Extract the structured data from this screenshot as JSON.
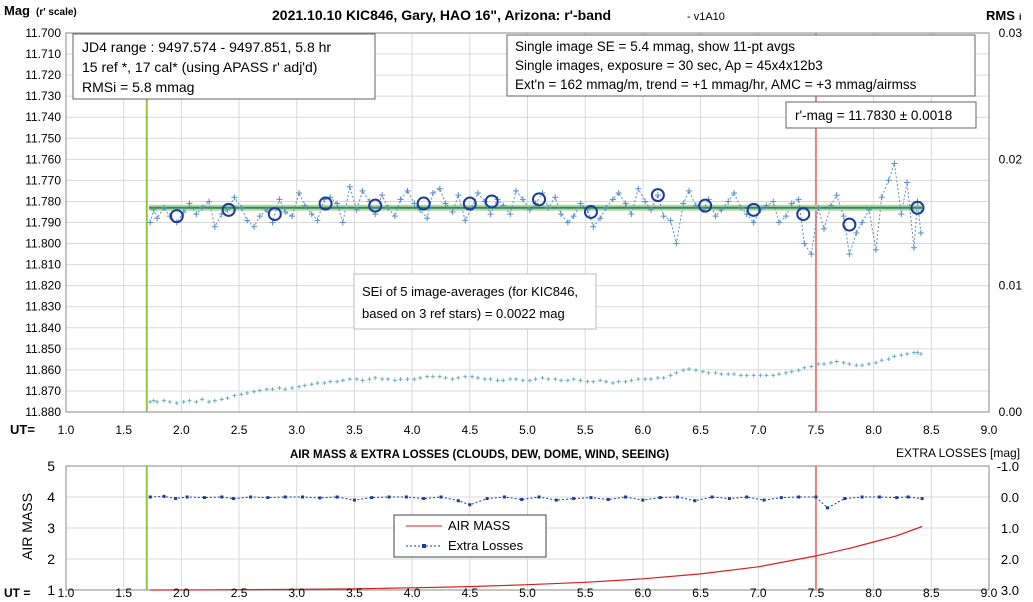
{
  "chart_data": [
    {
      "type": "scatter",
      "title": "2021.10.10 KIC846, Gary, HAO 16\", Arizona: r'-band",
      "title_suffix": "- v1A10",
      "ylabel": "Mag",
      "ylabel_small": "(r' scale)",
      "y2label": "RMS",
      "y2label_suffix": "i",
      "xlabel": "UT=",
      "xlim": [
        1.0,
        9.0
      ],
      "ylim": [
        11.7,
        11.88
      ],
      "y_inverted": true,
      "y2lim": [
        0.0,
        0.03
      ],
      "x_ticks": [
        "1.0",
        "1.5",
        "2.0",
        "2.5",
        "3.0",
        "3.5",
        "4.0",
        "4.5",
        "5.0",
        "5.5",
        "6.0",
        "6.5",
        "7.0",
        "7.5",
        "8.0",
        "8.5",
        "9.0"
      ],
      "y_ticks": [
        "11.700",
        "11.710",
        "11.720",
        "11.730",
        "11.740",
        "11.750",
        "11.760",
        "11.770",
        "11.780",
        "11.790",
        "11.800",
        "11.810",
        "11.820",
        "11.830",
        "11.840",
        "11.850",
        "11.860",
        "11.870",
        "11.880"
      ],
      "y2_ticks": [
        "0.03",
        "0.02",
        "0.01",
        "0.00"
      ],
      "grid": true,
      "vlines": [
        {
          "x": 1.7,
          "color": "#8dc63f"
        },
        {
          "x": 7.5,
          "color": "#f08080"
        }
      ],
      "fit_line": {
        "y": 11.783,
        "x_range": [
          1.72,
          8.42
        ],
        "color": "#2e8b57",
        "band_color": "#b5d6a7"
      },
      "series": [
        {
          "name": "single images",
          "marker": "plus",
          "color": "#5a8fc8",
          "x": [
            1.73,
            1.76,
            1.79,
            1.85,
            1.9,
            1.96,
            2.02,
            2.07,
            2.13,
            2.18,
            2.24,
            2.29,
            2.35,
            2.4,
            2.46,
            2.52,
            2.57,
            2.63,
            2.68,
            2.74,
            2.79,
            2.85,
            2.9,
            2.96,
            3.02,
            3.07,
            3.13,
            3.18,
            3.24,
            3.29,
            3.35,
            3.4,
            3.46,
            3.52,
            3.57,
            3.63,
            3.68,
            3.74,
            3.79,
            3.85,
            3.9,
            3.96,
            4.02,
            4.07,
            4.13,
            4.18,
            4.24,
            4.29,
            4.35,
            4.4,
            4.46,
            4.52,
            4.57,
            4.63,
            4.68,
            4.74,
            4.79,
            4.85,
            4.9,
            4.96,
            5.02,
            5.07,
            5.13,
            5.18,
            5.24,
            5.29,
            5.35,
            5.4,
            5.46,
            5.52,
            5.57,
            5.63,
            5.68,
            5.74,
            5.79,
            5.85,
            5.9,
            5.96,
            6.02,
            6.07,
            6.13,
            6.18,
            6.24,
            6.29,
            6.35,
            6.4,
            6.46,
            6.52,
            6.57,
            6.63,
            6.68,
            6.74,
            6.79,
            6.85,
            6.9,
            6.96,
            7.02,
            7.07,
            7.13,
            7.18,
            7.24,
            7.29,
            7.35,
            7.4,
            7.46,
            7.52,
            7.57,
            7.63,
            7.68,
            7.74,
            7.79,
            7.85,
            7.9,
            7.96,
            8.02,
            8.07,
            8.13,
            8.18,
            8.24,
            8.29,
            8.35,
            8.38,
            8.41
          ],
          "y": [
            11.79,
            11.784,
            11.788,
            11.783,
            11.787,
            11.79,
            11.785,
            11.781,
            11.786,
            11.783,
            11.78,
            11.792,
            11.786,
            11.784,
            11.778,
            11.783,
            11.789,
            11.792,
            11.787,
            11.784,
            11.79,
            11.779,
            11.785,
            11.787,
            11.776,
            11.782,
            11.786,
            11.789,
            11.779,
            11.778,
            11.781,
            11.79,
            11.773,
            11.784,
            11.775,
            11.78,
            11.786,
            11.777,
            11.783,
            11.787,
            11.779,
            11.775,
            11.781,
            11.784,
            11.788,
            11.776,
            11.774,
            11.781,
            11.785,
            11.777,
            11.789,
            11.783,
            11.776,
            11.78,
            11.786,
            11.779,
            11.782,
            11.786,
            11.775,
            11.779,
            11.784,
            11.781,
            11.776,
            11.783,
            11.778,
            11.786,
            11.79,
            11.787,
            11.781,
            11.784,
            11.792,
            11.788,
            11.783,
            11.779,
            11.776,
            11.781,
            11.786,
            11.774,
            11.78,
            11.784,
            11.777,
            11.787,
            11.789,
            11.8,
            11.781,
            11.775,
            11.782,
            11.784,
            11.779,
            11.787,
            11.784,
            11.78,
            11.776,
            11.783,
            11.786,
            11.79,
            11.784,
            11.782,
            11.78,
            11.79,
            11.787,
            11.781,
            11.779,
            11.8,
            11.805,
            11.783,
            11.793,
            11.782,
            11.777,
            11.787,
            11.805,
            11.795,
            11.79,
            11.784,
            11.803,
            11.778,
            11.77,
            11.762,
            11.786,
            11.771,
            11.802,
            11.78,
            11.795
          ],
          "errors_y2": [
            0.0008,
            0.0009,
            0.0008,
            0.0009,
            0.0008,
            0.0007,
            0.0008,
            0.0009,
            0.0008,
            0.001,
            0.0008,
            0.0009,
            0.001,
            0.0011,
            0.0013,
            0.0014,
            0.0015,
            0.0016,
            0.0017,
            0.0018,
            0.0018,
            0.0019,
            0.0018,
            0.0019,
            0.002,
            0.0021,
            0.0022,
            0.0023,
            0.0023,
            0.0024,
            0.0024,
            0.0025,
            0.0026,
            0.0026,
            0.0025,
            0.0026,
            0.0027,
            0.0026,
            0.0026,
            0.0025,
            0.0026,
            0.0026,
            0.0026,
            0.0027,
            0.0028,
            0.0028,
            0.0028,
            0.0027,
            0.0026,
            0.0027,
            0.0028,
            0.0028,
            0.0027,
            0.0026,
            0.0026,
            0.0025,
            0.0025,
            0.0026,
            0.0026,
            0.0025,
            0.0025,
            0.0026,
            0.0027,
            0.0026,
            0.0026,
            0.0025,
            0.0025,
            0.0026,
            0.0025,
            0.0024,
            0.0024,
            0.0025,
            0.0024,
            0.0023,
            0.0024,
            0.0024,
            0.0025,
            0.0026,
            0.0026,
            0.0026,
            0.0027,
            0.0027,
            0.0029,
            0.0031,
            0.0033,
            0.0034,
            0.0033,
            0.0032,
            0.0031,
            0.0031,
            0.003,
            0.003,
            0.003,
            0.0029,
            0.0029,
            0.0029,
            0.0029,
            0.0029,
            0.0029,
            0.003,
            0.0031,
            0.0032,
            0.0033,
            0.0035,
            0.0036,
            0.0038,
            0.0038,
            0.0039,
            0.004,
            0.0039,
            0.0038,
            0.0037,
            0.0037,
            0.0038,
            0.0039,
            0.0041,
            0.0042,
            0.0044,
            0.0045,
            0.0046,
            0.0047,
            0.0047,
            0.0046
          ]
        },
        {
          "name": "11-pt averages",
          "marker": "circle",
          "color": "#1a3d9c",
          "x": [
            1.96,
            2.41,
            2.81,
            3.25,
            3.68,
            4.1,
            4.5,
            4.69,
            5.1,
            5.55,
            6.13,
            6.54,
            6.96,
            7.39,
            7.79,
            8.38
          ],
          "y": [
            11.787,
            11.784,
            11.786,
            11.781,
            11.782,
            11.781,
            11.781,
            11.78,
            11.779,
            11.785,
            11.777,
            11.782,
            11.784,
            11.786,
            11.791,
            11.783
          ]
        }
      ],
      "annotations": [
        {
          "label": "JD4 range : 9497.574 - 9497.851,  5.8  hr"
        },
        {
          "label": "15 ref *, 17 cal* (using APASS r' adj'd)"
        },
        {
          "label": "RMSi = 5.8 mmag"
        },
        {
          "label": "Single image SE = 5.4 mmag, show  11-pt avgs"
        },
        {
          "label": "Single images, exposure = 30 sec, Ap = 45x4x12b3"
        },
        {
          "label": "Ext'n = 162 mmag/m, trend = +1  mmag/hr, AMC = +3 mmag/airmss"
        },
        {
          "label": "r'-mag = 11.7830 ± 0.0018"
        },
        {
          "label": "SEi of 5 image-averages (for KIC846,"
        },
        {
          "label": "based on 3 ref stars) = 0.0022 mag"
        }
      ]
    },
    {
      "type": "line",
      "title": "AIR MASS & EXTRA LOSSES (CLOUDS, DEW, DOME, WIND, SEEING)",
      "ylabel": "AIR MASS",
      "y2label": "EXTRA LOSSES [mag]",
      "xlabel": "UT =",
      "xlim": [
        1.0,
        9.0
      ],
      "ylim": [
        1,
        5
      ],
      "y2lim": [
        -1.0,
        3.0
      ],
      "y2_inverted": true,
      "x_ticks": [
        "1.0",
        "1.5",
        "2.0",
        "2.5",
        "3.0",
        "3.5",
        "4.0",
        "4.5",
        "5.0",
        "5.5",
        "6.0",
        "6.5",
        "7.0",
        "7.5",
        "8.0",
        "8.5",
        "9.0"
      ],
      "y_ticks": [
        "5",
        "4",
        "3",
        "2",
        "1"
      ],
      "y2_ticks": [
        "-1.0",
        "0.0",
        "1.0",
        "2.0",
        "3.0"
      ],
      "grid": true,
      "vlines": [
        {
          "x": 1.7,
          "color": "#8dc63f"
        },
        {
          "x": 7.5,
          "color": "#f08080"
        }
      ],
      "legend_position": "center",
      "series": [
        {
          "name": "AIR MASS",
          "color": "#d62020",
          "x": [
            1.73,
            2.0,
            2.5,
            3.0,
            3.5,
            4.0,
            4.5,
            5.0,
            5.5,
            6.0,
            6.5,
            7.0,
            7.5,
            7.8,
            8.0,
            8.2,
            8.42
          ],
          "y": [
            1.0,
            1.0,
            1.01,
            1.02,
            1.04,
            1.07,
            1.11,
            1.17,
            1.25,
            1.36,
            1.52,
            1.75,
            2.1,
            2.35,
            2.55,
            2.75,
            3.05
          ]
        },
        {
          "name": "Extra Losses",
          "color": "#1a3d9c",
          "x": [
            1.73,
            1.85,
            1.95,
            2.05,
            2.2,
            2.35,
            2.45,
            2.6,
            2.75,
            2.9,
            3.05,
            3.2,
            3.35,
            3.5,
            3.65,
            3.8,
            3.95,
            4.1,
            4.25,
            4.4,
            4.5,
            4.65,
            4.8,
            4.95,
            5.1,
            5.25,
            5.4,
            5.55,
            5.7,
            5.85,
            6.0,
            6.15,
            6.3,
            6.45,
            6.6,
            6.75,
            6.9,
            7.05,
            7.2,
            7.35,
            7.5,
            7.6,
            7.75,
            7.9,
            8.05,
            8.2,
            8.3,
            8.42
          ],
          "y": [
            0.0,
            -0.02,
            0.05,
            0.0,
            0.02,
            0.0,
            0.05,
            0.0,
            0.02,
            0.0,
            0.0,
            0.03,
            0.0,
            0.1,
            0.02,
            0.0,
            0.0,
            0.05,
            0.0,
            0.12,
            0.25,
            0.05,
            0.0,
            0.08,
            0.0,
            0.1,
            0.05,
            0.02,
            0.08,
            0.0,
            0.1,
            0.02,
            0.0,
            0.12,
            0.0,
            0.05,
            0.0,
            0.1,
            0.02,
            0.0,
            0.0,
            0.35,
            0.05,
            0.0,
            0.0,
            0.02,
            0.0,
            0.05
          ]
        }
      ]
    }
  ]
}
